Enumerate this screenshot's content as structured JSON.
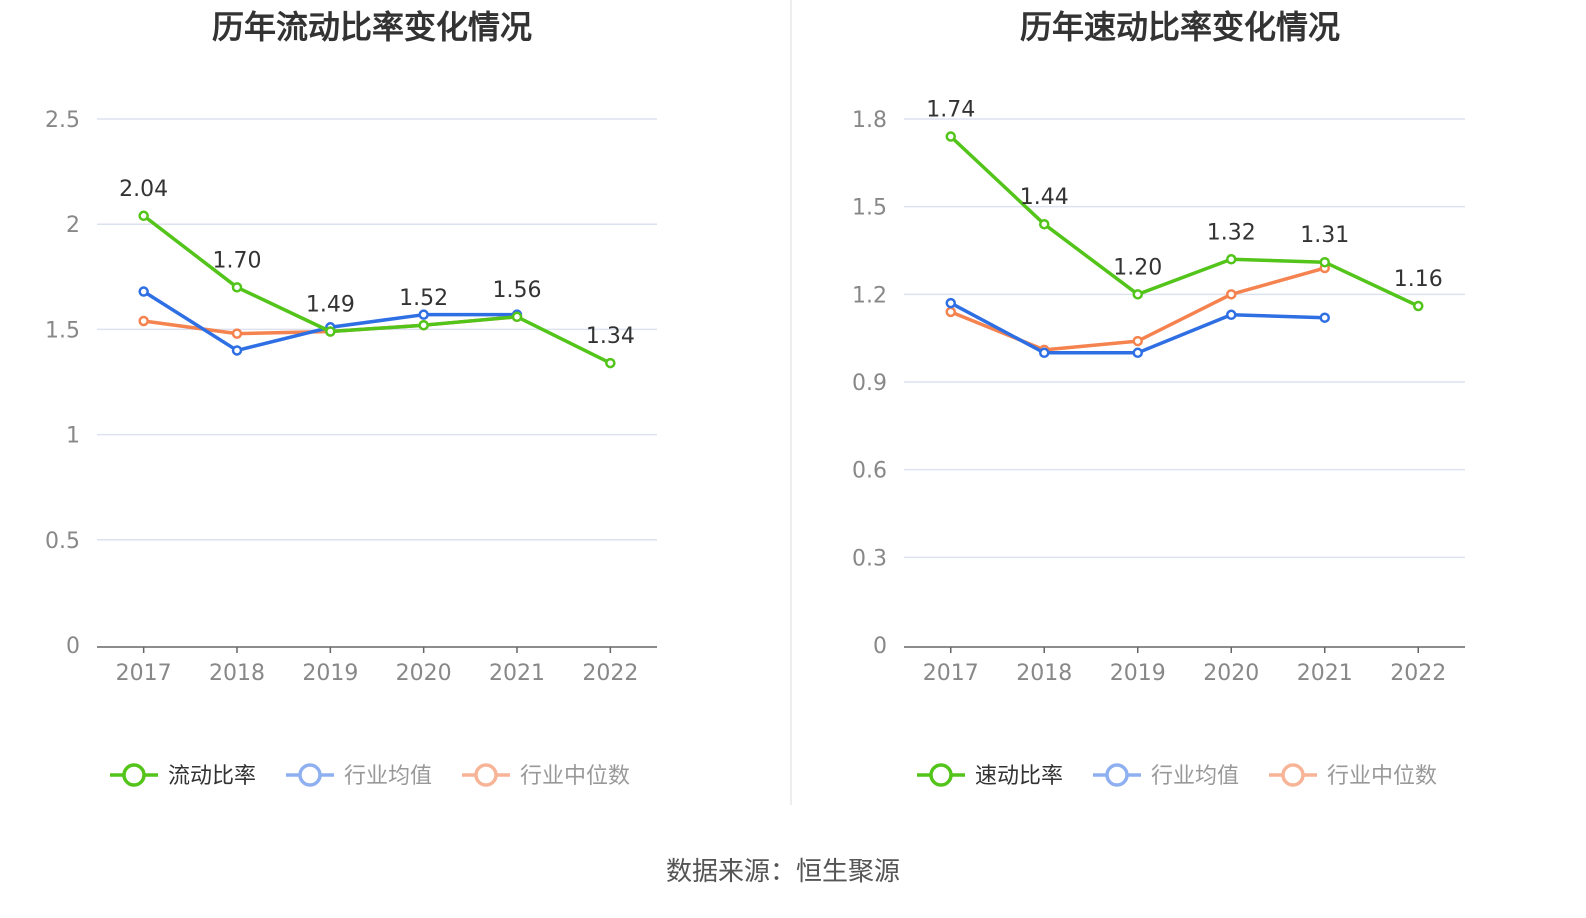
{
  "source": "数据来源：恒生聚源",
  "colors": {
    "company": "#52c41a",
    "avg": "#2f6fe4",
    "median": "#f5834f",
    "grid": "#dde2ef",
    "axis": "#666666"
  },
  "chart_data": [
    {
      "type": "line",
      "title": "历年流动比率变化情况",
      "categories": [
        "2017",
        "2018",
        "2019",
        "2020",
        "2021",
        "2022"
      ],
      "ylim": [
        0,
        2.5
      ],
      "yticks": [
        "0",
        "0.5",
        "1",
        "1.5",
        "2",
        "2.5"
      ],
      "ytick_values": [
        0,
        0.5,
        1,
        1.5,
        2,
        2.5
      ],
      "grid": true,
      "legend_position": "bottom",
      "series": [
        {
          "name": "流动比率",
          "values": [
            2.04,
            1.7,
            1.49,
            1.52,
            1.56,
            1.34
          ],
          "labels": [
            "2.04",
            "1.70",
            "1.49",
            "1.52",
            "1.56",
            "1.34"
          ]
        },
        {
          "name": "行业均值",
          "values": [
            1.68,
            1.4,
            1.51,
            1.57,
            1.57,
            null
          ]
        },
        {
          "name": "行业中位数",
          "values": [
            1.54,
            1.48,
            1.49,
            1.52,
            1.56,
            null
          ]
        }
      ]
    },
    {
      "type": "line",
      "title": "历年速动比率变化情况",
      "categories": [
        "2017",
        "2018",
        "2019",
        "2020",
        "2021",
        "2022"
      ],
      "ylim": [
        0,
        1.8
      ],
      "yticks": [
        "0",
        "0.3",
        "0.6",
        "0.9",
        "1.2",
        "1.5",
        "1.8"
      ],
      "ytick_values": [
        0,
        0.3,
        0.6,
        0.9,
        1.2,
        1.5,
        1.8
      ],
      "grid": true,
      "legend_position": "bottom",
      "series": [
        {
          "name": "速动比率",
          "values": [
            1.74,
            1.44,
            1.2,
            1.32,
            1.31,
            1.16
          ],
          "labels": [
            "1.74",
            "1.44",
            "1.20",
            "1.32",
            "1.31",
            "1.16"
          ]
        },
        {
          "name": "行业均值",
          "values": [
            1.17,
            1.0,
            1.0,
            1.13,
            1.12,
            null
          ]
        },
        {
          "name": "行业中位数",
          "values": [
            1.14,
            1.01,
            1.04,
            1.2,
            1.29,
            null
          ]
        }
      ]
    }
  ]
}
